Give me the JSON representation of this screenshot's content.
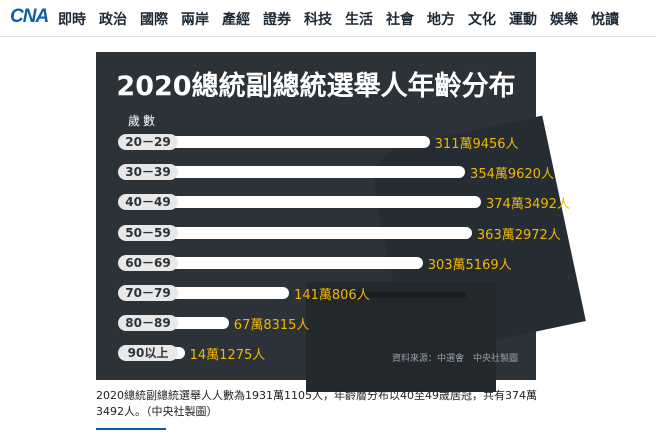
{
  "site": {
    "logo": "CNA"
  },
  "nav": [
    "即時",
    "政治",
    "國際",
    "兩岸",
    "產經",
    "證券",
    "科技",
    "生活",
    "社會",
    "地方",
    "文化",
    "運動",
    "娛樂",
    "悅讀"
  ],
  "figure": {
    "title": "2020總統副總統選舉人年齡分布",
    "axis_label": "歲數",
    "source": "資料來源：中選會　中央社製圖",
    "colors": {
      "background": "#2b3339",
      "bar": "#ffffff",
      "value": "#f2b705"
    }
  },
  "chart_data": {
    "type": "bar",
    "title": "2020總統副總統選舉人年齡分布",
    "ylabel": "歲數",
    "categories": [
      "20－29",
      "30－39",
      "40－49",
      "50－59",
      "60－69",
      "70－79",
      "80－89",
      "90以上"
    ],
    "values": [
      3119456,
      3549620,
      3743492,
      3632972,
      3035169,
      1410806,
      678315,
      141275
    ],
    "labels": [
      "311萬9456人",
      "354萬9620人",
      "374萬3492人",
      "363萬2972人",
      "303萬5169人",
      "141萬806人",
      "67萬8315人",
      "14萬1275人"
    ]
  },
  "caption": "2020總統副總統選舉人人數為1931萬1105人，年齡層分布以40至49歲居冠，共有374萬3492人。（中央社製圖）"
}
